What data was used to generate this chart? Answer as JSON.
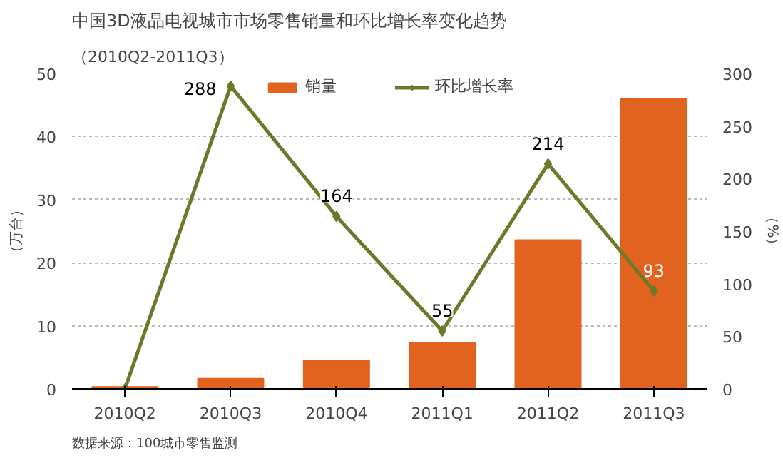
{
  "chart_data": {
    "type": "bar",
    "title": "中国3D液晶电视城市市场零售销量和环比增长率变化趋势",
    "subtitle": "（2010Q2-2011Q3）",
    "ylabel": "（万台）",
    "y2label": "（%）",
    "categories": [
      "2010Q2",
      "2010Q3",
      "2010Q4",
      "2011Q1",
      "2011Q2",
      "2011Q3"
    ],
    "series": [
      {
        "name": "销量",
        "color": "#e2621f",
        "values": [
          0.3,
          1.6,
          4.5,
          7.3,
          23.6,
          46.0
        ]
      },
      {
        "name": "环比增长率",
        "type": "line",
        "axis": "y2",
        "color": "#6b7a2a",
        "marker": "diamond",
        "values": [
          0,
          288,
          164,
          55,
          214,
          93
        ],
        "value_labels": [
          null,
          "288",
          "164",
          "55",
          "214",
          "93"
        ]
      }
    ],
    "ylim": [
      0,
      50
    ],
    "yticks": [
      0,
      10,
      20,
      30,
      40,
      50
    ],
    "y2lim": [
      0,
      300
    ],
    "y2ticks": [
      0,
      50,
      100,
      150,
      200,
      250,
      300
    ],
    "grid": "y",
    "legend": "top",
    "annotations": [
      "数据来源：100城市零售监测"
    ]
  }
}
